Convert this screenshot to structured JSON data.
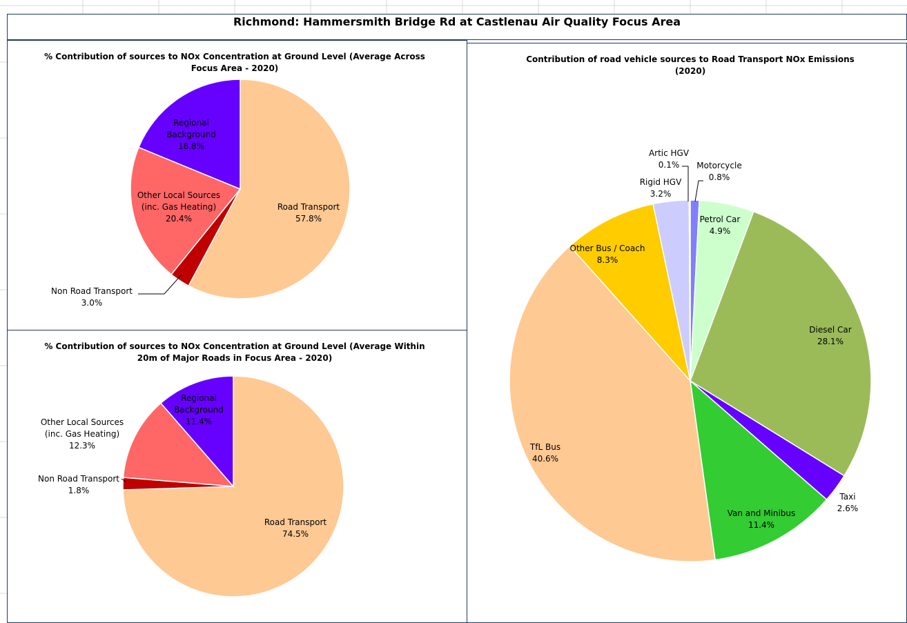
{
  "title": "Richmond: Hammersmith Bridge Rd at Castlenau Air Quality Focus Area",
  "chart_data": [
    {
      "type": "pie",
      "title": "% Contribution of sources to NOx Concentration at Ground Level (Average Across Focus Area - 2020)",
      "categories": [
        "Road Transport",
        "Non Road Transport",
        "Other Local Sources (inc. Gas Heating)",
        "Regional Background"
      ],
      "values": [
        57.8,
        3.0,
        20.4,
        18.8
      ],
      "value_labels": [
        "57.8%",
        "3.0%",
        "20.4%",
        "18.8%"
      ],
      "colors": [
        "#ffc993",
        "#c00000",
        "#ff6666",
        "#6600ff"
      ]
    },
    {
      "type": "pie",
      "title": "% Contribution of sources to NOx Concentration at Ground Level (Average Within 20m of Major Roads in Focus Area - 2020)",
      "categories": [
        "Road Transport",
        "Non Road Transport",
        "Other Local Sources (inc. Gas Heating)",
        "Regional Background"
      ],
      "values": [
        74.5,
        1.8,
        12.3,
        11.4
      ],
      "value_labels": [
        "74.5%",
        "1.8%",
        "12.3%",
        "11.4%"
      ],
      "colors": [
        "#ffc993",
        "#c00000",
        "#ff6666",
        "#6600ff"
      ]
    },
    {
      "type": "pie",
      "title": "Contribution of road vehicle sources to Road Transport NOx Emissions (2020)",
      "categories": [
        "Motorcycle",
        "Petrol Car",
        "Diesel Car",
        "Taxi",
        "Van and Minibus",
        "TfL Bus",
        "Other Bus / Coach",
        "Rigid HGV",
        "Artic HGV"
      ],
      "values": [
        0.8,
        4.9,
        28.1,
        2.6,
        11.4,
        40.6,
        8.3,
        3.2,
        0.1
      ],
      "value_labels": [
        "0.8%",
        "4.9%",
        "28.1%",
        "2.6%",
        "11.4%",
        "40.6%",
        "8.3%",
        "3.2%",
        "0.1%"
      ],
      "colors": [
        "#7f7fff",
        "#ccffcc",
        "#9bbb59",
        "#6600ff",
        "#33cc33",
        "#ffc993",
        "#ffcc00",
        "#ccccff",
        "#9999ff"
      ]
    }
  ]
}
